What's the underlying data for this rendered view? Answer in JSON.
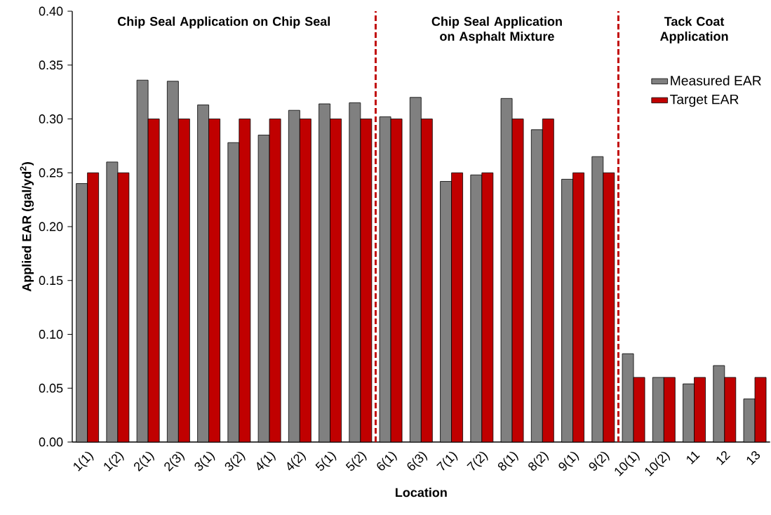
{
  "chart_data": {
    "type": "bar",
    "xlabel": "Location",
    "ylabel": "Applied EAR (gal/yd$^{2}$)",
    "categories": [
      "1(1)",
      "1(2)",
      "2(1)",
      "2(3)",
      "3(1)",
      "3(2)",
      "4(1)",
      "4(2)",
      "5(1)",
      "5(2)",
      "6(1)",
      "6(3)",
      "7(1)",
      "7(2)",
      "8(1)",
      "8(2)",
      "9(1)",
      "9(2)",
      "10(1)",
      "10(2)",
      "11",
      "12",
      "13"
    ],
    "series": [
      {
        "name": "Measured EAR",
        "color": "#808080",
        "values": [
          0.24,
          0.26,
          0.336,
          0.335,
          0.313,
          0.278,
          0.285,
          0.308,
          0.314,
          0.315,
          0.302,
          0.32,
          0.242,
          0.248,
          0.319,
          0.29,
          0.244,
          0.265,
          0.082,
          0.06,
          0.054,
          0.071,
          0.04
        ]
      },
      {
        "name": "Target EAR",
        "color": "#c00000",
        "values": [
          0.25,
          0.25,
          0.3,
          0.3,
          0.3,
          0.3,
          0.3,
          0.3,
          0.3,
          0.3,
          0.3,
          0.3,
          0.25,
          0.25,
          0.3,
          0.3,
          0.25,
          0.25,
          0.06,
          0.06,
          0.06,
          0.06,
          0.06
        ]
      }
    ],
    "ylim": [
      0,
      0.4
    ],
    "yticks": [
      {
        "value": 0,
        "label": "0.00"
      },
      {
        "value": 0.05,
        "label": "0.05"
      },
      {
        "value": 0.1,
        "label": "0.10"
      },
      {
        "value": 0.15,
        "label": "0.15"
      },
      {
        "value": 0.2,
        "label": "0.20"
      },
      {
        "value": 0.25,
        "label": "0.25"
      },
      {
        "value": 0.3,
        "label": "0.30"
      },
      {
        "value": 0.35,
        "label": "0.35"
      },
      {
        "value": 0.4,
        "label": "0.40"
      }
    ],
    "annotations": [
      "Chip Seal Application on Chip Seal",
      "Chip Seal Application on Asphalt Mixture",
      "Tack Coat Application"
    ],
    "legend": "top right",
    "grid": false
  }
}
